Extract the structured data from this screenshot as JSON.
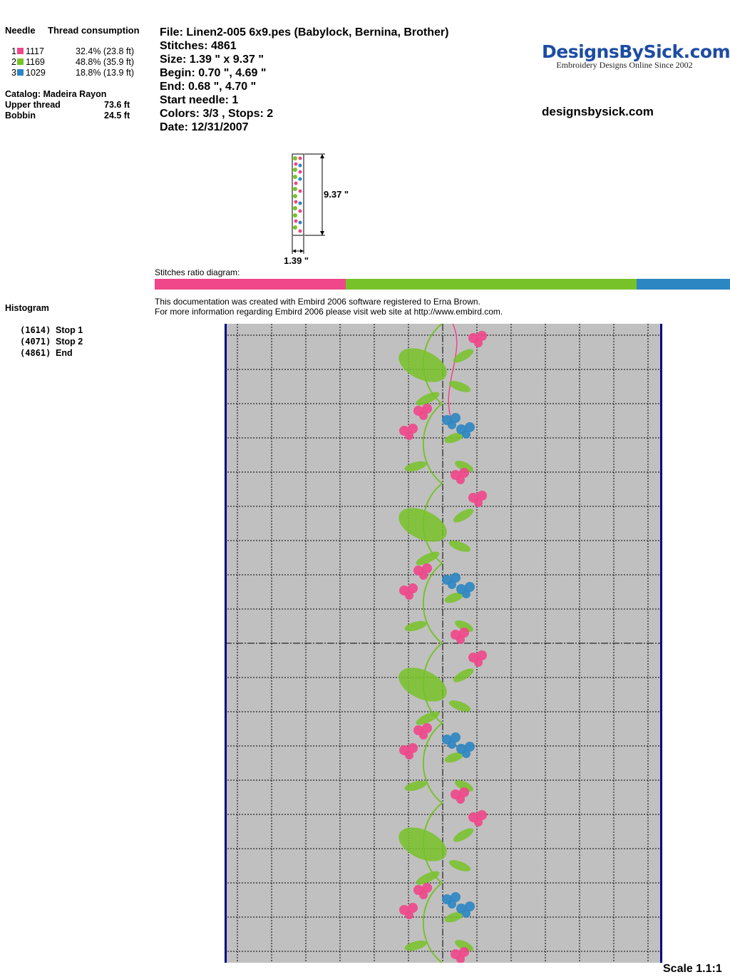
{
  "colors": {
    "pink": "#f0468a",
    "green": "#77c228",
    "blue": "#2b86c2",
    "hoop": "#c0c0c0",
    "frame": "#000080",
    "logo": "#1d4ca3"
  },
  "thread_table": {
    "header_needle": "Needle",
    "header_consumption": "Thread consumption",
    "rows": [
      {
        "needle": "1",
        "code": "1117",
        "consumption": "32.4% (23.8 ft)",
        "color": "#f0468a"
      },
      {
        "needle": "2",
        "code": "1169",
        "consumption": "48.8% (35.9 ft)",
        "color": "#77c228"
      },
      {
        "needle": "3",
        "code": "1029",
        "consumption": "18.8% (13.9 ft)",
        "color": "#2b86c2"
      }
    ]
  },
  "catalog": {
    "label": "Catalog: Madeira Rayon",
    "upper_label": "Upper thread",
    "upper_value": "73.6 ft",
    "bobbin_label": "Bobbin",
    "bobbin_value": "24.5 ft"
  },
  "design_info": {
    "file": "File: Linen2-005 6x9.pes  (Babylock, Bernina, Brother)",
    "stitches": "Stitches: 4861",
    "size": "Size: 1.39 \" x 9.37 \"",
    "begin": "Begin: 0.70 \", 4.69 \"",
    "end": "End: 0.68 \", 4.70 \"",
    "start_needle": "Start needle: 1",
    "colors_stops": "Colors: 3/3 , Stops: 2",
    "date": "Date: 12/31/2007"
  },
  "logo": {
    "title": "DesignsBySick.com",
    "subtitle": "Embroidery Designs Online Since 2002",
    "site": "designsbysick.com"
  },
  "dimensions": {
    "height": "9.37 \"",
    "width": "1.39 \""
  },
  "ratio": {
    "label": "Stitches ratio diagram:",
    "fractions": [
      0.332,
      0.506,
      0.162
    ]
  },
  "credits": {
    "line1": "This documentation was created with Embird 2006 software registered to Erna Brown.",
    "line2": "For more information regarding Embird 2006 please visit web site at http://www.embird.com."
  },
  "histogram": {
    "title": "Histogram",
    "stops": [
      {
        "count": "(1614)",
        "label": "Stop 1"
      },
      {
        "count": "(4071)",
        "label": "Stop 2"
      },
      {
        "count": "(4861)",
        "label": "End"
      }
    ]
  },
  "scale": "Scale 1.1:1"
}
